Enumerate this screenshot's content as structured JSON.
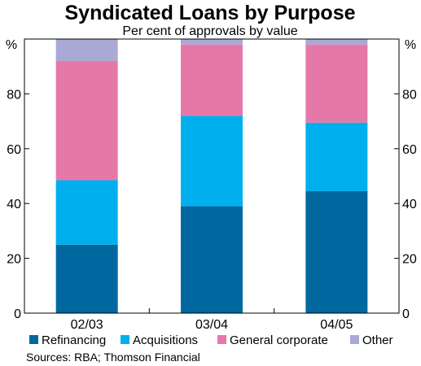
{
  "chart_data": {
    "type": "bar",
    "stacked": true,
    "title": "Syndicated Loans by Purpose",
    "subtitle": "Per cent of approvals by value",
    "unit_left": "%",
    "unit_right": "%",
    "categories": [
      "02/03",
      "03/04",
      "04/05"
    ],
    "series": [
      {
        "name": "Refinancing",
        "color": "#00689f",
        "values": [
          25,
          39,
          44.5
        ]
      },
      {
        "name": "Acquisitions",
        "color": "#00b0ee",
        "values": [
          23.5,
          33,
          25
        ]
      },
      {
        "name": "General corporate",
        "color": "#e479a9",
        "values": [
          43.5,
          26,
          28.5
        ]
      },
      {
        "name": "Other",
        "color": "#a9a9d5",
        "values": [
          8,
          2,
          2
        ]
      }
    ],
    "ylim": [
      0,
      100
    ],
    "yticks": [
      0,
      20,
      40,
      60,
      80
    ],
    "legend_position": "bottom",
    "source": "Sources: RBA; Thomson Financial",
    "grid": false
  }
}
